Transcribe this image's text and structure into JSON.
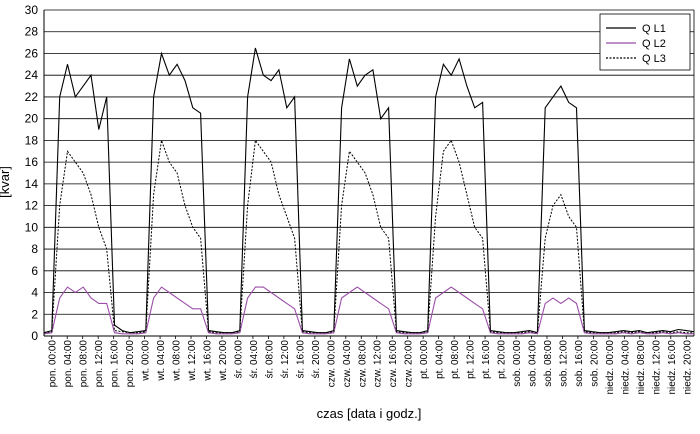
{
  "chart_data": {
    "type": "line",
    "title": "",
    "xlabel": "czas [data i godz.]",
    "ylabel": "[kvar]",
    "ylim": [
      0,
      30
    ],
    "yticks": [
      0,
      2,
      4,
      6,
      8,
      10,
      12,
      14,
      16,
      18,
      20,
      22,
      24,
      26,
      28,
      30
    ],
    "grid": "horizontal",
    "legend_position": "top-right",
    "xticks": [
      "pon. 00:00",
      "pon. 04:00",
      "pon. 08:00",
      "pon. 12:00",
      "pon. 16:00",
      "pon. 20:00",
      "wt. 00:00",
      "wt. 04:00",
      "wt. 08:00",
      "wt. 12:00",
      "wt. 16:00",
      "wt. 20:00",
      "śr. 00:00",
      "śr. 04:00",
      "śr. 08:00",
      "śr. 12:00",
      "śr. 16:00",
      "śr. 20:00",
      "czw. 00:00",
      "czw. 04:00",
      "czw. 08:00",
      "czw. 12:00",
      "czw. 16:00",
      "czw. 20:00",
      "pt. 00:00",
      "pt. 04:00",
      "pt. 08:00",
      "pt. 12:00",
      "pt. 16:00",
      "pt. 20:00",
      "sob. 00:00",
      "sob. 04:00",
      "sob. 08:00",
      "sob. 12:00",
      "sob. 16:00",
      "sob. 20:00",
      "niedz. 00:00",
      "niedz. 04:00",
      "niedz. 08:00",
      "niedz. 12:00",
      "niedz. 16:00",
      "niedz. 20:00"
    ],
    "x_hours_per_tick": 4,
    "series": [
      {
        "name": "Q L1",
        "color": "#000000",
        "dash": "solid",
        "values": [
          0.3,
          0.5,
          22.0,
          25.0,
          22.0,
          23.0,
          24.0,
          19.0,
          22.0,
          1.0,
          0.5,
          0.3,
          0.4,
          0.5,
          22.0,
          26.0,
          24.0,
          25.0,
          23.5,
          21.0,
          20.5,
          0.5,
          0.4,
          0.3,
          0.3,
          0.5,
          22.0,
          26.5,
          24.0,
          23.5,
          24.5,
          21.0,
          22.0,
          0.5,
          0.4,
          0.3,
          0.3,
          0.5,
          21.0,
          25.5,
          23.0,
          24.0,
          24.5,
          20.0,
          21.0,
          0.5,
          0.4,
          0.3,
          0.3,
          0.5,
          22.0,
          25.0,
          24.0,
          25.5,
          23.0,
          21.0,
          21.5,
          0.5,
          0.4,
          0.3,
          0.3,
          0.4,
          0.5,
          0.3,
          21.0,
          22.0,
          23.0,
          21.5,
          21.0,
          0.5,
          0.4,
          0.3,
          0.3,
          0.4,
          0.5,
          0.4,
          0.5,
          0.3,
          0.4,
          0.5,
          0.4,
          0.6,
          0.5,
          0.4
        ]
      },
      {
        "name": "Q L2",
        "color": "#9b4fa8",
        "dash": "solid",
        "values": [
          0.2,
          0.3,
          3.5,
          4.5,
          4.0,
          4.5,
          3.5,
          3.0,
          3.0,
          0.3,
          0.2,
          0.2,
          0.2,
          0.3,
          3.5,
          4.5,
          4.0,
          3.5,
          3.0,
          2.5,
          2.5,
          0.3,
          0.2,
          0.2,
          0.2,
          0.3,
          3.5,
          4.5,
          4.5,
          4.0,
          3.5,
          3.0,
          2.5,
          0.3,
          0.2,
          0.2,
          0.2,
          0.3,
          3.5,
          4.0,
          4.5,
          4.0,
          3.5,
          3.0,
          2.5,
          0.3,
          0.2,
          0.2,
          0.2,
          0.3,
          3.5,
          4.0,
          4.5,
          4.0,
          3.5,
          3.0,
          2.5,
          0.3,
          0.2,
          0.2,
          0.2,
          0.2,
          0.3,
          0.2,
          3.0,
          3.5,
          3.0,
          3.5,
          3.0,
          0.3,
          0.2,
          0.2,
          0.2,
          0.2,
          0.3,
          0.2,
          0.3,
          0.2,
          0.2,
          0.3,
          0.2,
          0.3,
          0.2,
          0.2
        ]
      },
      {
        "name": "Q L3",
        "color": "#000000",
        "dash": "dashed",
        "values": [
          0.3,
          0.4,
          12.0,
          17.0,
          16.0,
          15.0,
          13.0,
          10.0,
          8.0,
          0.5,
          0.4,
          0.3,
          0.3,
          0.4,
          13.0,
          18.0,
          16.0,
          15.0,
          12.0,
          10.0,
          9.0,
          0.4,
          0.3,
          0.3,
          0.3,
          0.4,
          12.0,
          18.0,
          17.0,
          16.0,
          13.0,
          11.0,
          9.0,
          0.4,
          0.3,
          0.3,
          0.3,
          0.4,
          12.0,
          17.0,
          16.0,
          15.0,
          13.0,
          10.0,
          9.0,
          0.4,
          0.3,
          0.3,
          0.3,
          0.4,
          11.0,
          17.0,
          18.0,
          16.0,
          13.0,
          10.0,
          9.0,
          0.4,
          0.3,
          0.3,
          0.3,
          0.3,
          0.4,
          0.3,
          9.0,
          12.0,
          13.0,
          11.0,
          10.0,
          0.4,
          0.3,
          0.3,
          0.3,
          0.3,
          0.4,
          0.3,
          0.4,
          0.3,
          0.3,
          0.4,
          0.3,
          0.4,
          0.3,
          0.3
        ]
      }
    ]
  }
}
